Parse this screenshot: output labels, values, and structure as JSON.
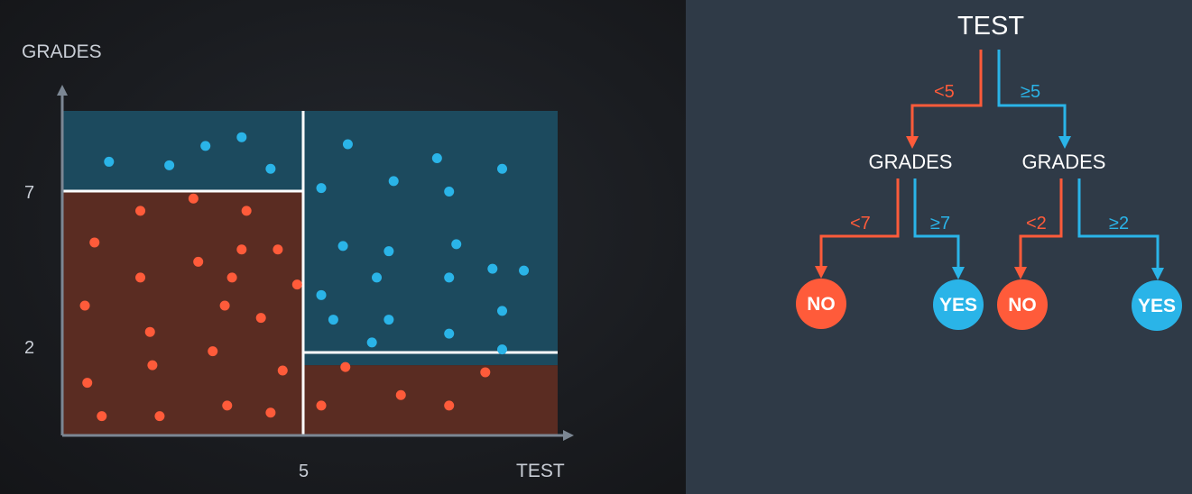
{
  "colors": {
    "no_red": "#ff5b3a",
    "yes_blue": "#2ab4e8",
    "region_red": "#5a2c22",
    "region_blue": "#1c4a5e",
    "axis": "#7c8794"
  },
  "plot": {
    "y_axis_label": "GRADES",
    "x_axis_label": "TEST",
    "y_ticks": [
      "7",
      "2"
    ],
    "x_ticks": [
      "5"
    ]
  },
  "chart_data": {
    "type": "scatter",
    "xlabel": "TEST",
    "ylabel": "GRADES",
    "x_ticks": [
      5
    ],
    "y_ticks": [
      2,
      7
    ],
    "xlim": [
      0,
      10.25
    ],
    "ylim": [
      0,
      9.25
    ],
    "regions": [
      {
        "x": [
          0,
          5
        ],
        "y": [
          0,
          7
        ],
        "class": "NO"
      },
      {
        "x": [
          0,
          5
        ],
        "y": [
          7,
          9.25
        ],
        "class": "YES"
      },
      {
        "x": [
          5,
          10.25
        ],
        "y": [
          2,
          9.25
        ],
        "class": "YES"
      },
      {
        "x": [
          5,
          10.25
        ],
        "y": [
          0,
          2
        ],
        "class": "NO"
      }
    ],
    "series": [
      {
        "class": "YES",
        "color": "#2ab4e8",
        "points": [
          [
            0.95,
            7.8
          ],
          [
            2.2,
            7.7
          ],
          [
            2.95,
            8.25
          ],
          [
            3.7,
            8.5
          ],
          [
            4.3,
            7.6
          ],
          [
            5.9,
            8.3
          ],
          [
            7.75,
            7.9
          ],
          [
            9.1,
            7.6
          ],
          [
            6.85,
            7.25
          ],
          [
            8.0,
            6.95
          ],
          [
            5.35,
            7.05
          ],
          [
            5.8,
            5.4
          ],
          [
            6.75,
            5.25
          ],
          [
            8.15,
            5.45
          ],
          [
            8.9,
            4.75
          ],
          [
            9.55,
            4.7
          ],
          [
            6.5,
            4.5
          ],
          [
            8.0,
            4.5
          ],
          [
            5.35,
            4.0
          ],
          [
            5.6,
            3.3
          ],
          [
            6.75,
            3.3
          ],
          [
            9.1,
            3.55
          ],
          [
            8.0,
            2.9
          ],
          [
            6.4,
            2.65
          ],
          [
            9.1,
            2.45
          ]
        ]
      },
      {
        "class": "NO",
        "color": "#ff5b3a",
        "points": [
          [
            1.6,
            6.4
          ],
          [
            2.7,
            6.75
          ],
          [
            3.8,
            6.4
          ],
          [
            0.65,
            5.5
          ],
          [
            3.7,
            5.3
          ],
          [
            4.45,
            5.3
          ],
          [
            2.8,
            4.95
          ],
          [
            1.6,
            4.5
          ],
          [
            3.5,
            4.5
          ],
          [
            4.85,
            4.3
          ],
          [
            0.45,
            3.7
          ],
          [
            3.35,
            3.7
          ],
          [
            4.1,
            3.35
          ],
          [
            1.8,
            2.95
          ],
          [
            3.1,
            2.4
          ],
          [
            1.85,
            2.0
          ],
          [
            4.55,
            1.85
          ],
          [
            0.5,
            1.5
          ],
          [
            0.8,
            0.55
          ],
          [
            2.0,
            0.55
          ],
          [
            3.4,
            0.85
          ],
          [
            4.3,
            0.65
          ],
          [
            5.35,
            0.85
          ],
          [
            5.85,
            1.95
          ],
          [
            7.0,
            1.15
          ],
          [
            8.0,
            0.85
          ],
          [
            8.75,
            1.8
          ]
        ]
      }
    ]
  },
  "tree": {
    "root": "TEST",
    "left_edge": "<5",
    "right_edge": "≥5",
    "left_node": "GRADES",
    "right_node": "GRADES",
    "ll_edge": "<7",
    "lr_edge": "≥7",
    "rl_edge": "<2",
    "rr_edge": "≥2",
    "leaf1": "NO",
    "leaf2": "YES",
    "leaf3": "NO",
    "leaf4": "YES"
  }
}
